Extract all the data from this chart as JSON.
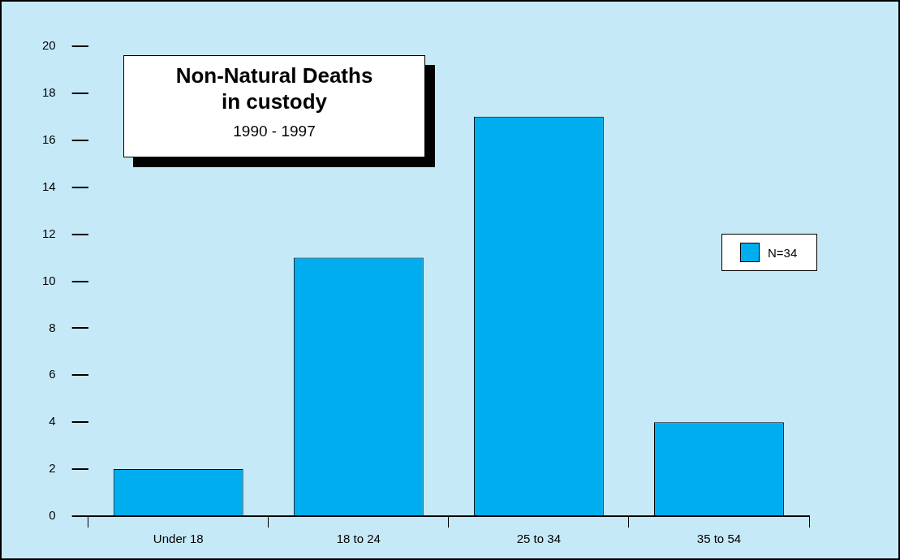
{
  "chart_data": {
    "type": "bar",
    "title": "Non-Natural Deaths in custody",
    "subtitle": "1990 - 1997",
    "categories": [
      "Under 18",
      "18 to 24",
      "25 to 34",
      "35 to 54"
    ],
    "series": [
      {
        "name": "N=34",
        "color": "#00aeef",
        "values": [
          2,
          11,
          17,
          4
        ]
      }
    ],
    "ylim": [
      0,
      20
    ],
    "yticks": [
      0,
      2,
      4,
      6,
      8,
      10,
      12,
      14,
      16,
      18,
      20
    ],
    "grid": false,
    "legend": "right"
  }
}
